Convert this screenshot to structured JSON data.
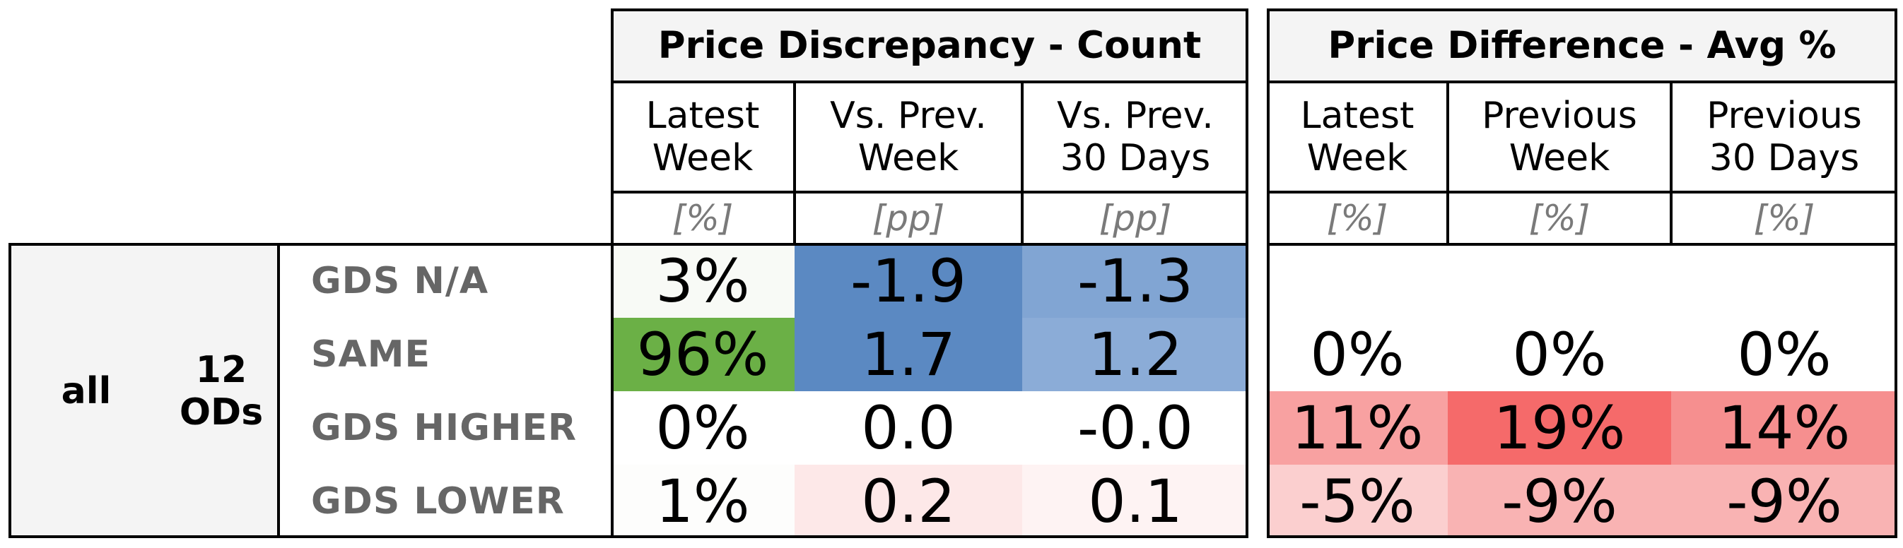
{
  "chart_data": {
    "type": "table",
    "panels": [
      {
        "title": "Price Discrepancy - Count",
        "columns": [
          {
            "label": "Latest\nWeek",
            "unit": "[%]"
          },
          {
            "label": "Vs. Prev.\nWeek",
            "unit": "[pp]"
          },
          {
            "label": "Vs. Prev.\n30 Days",
            "unit": "[pp]"
          }
        ],
        "rows": [
          [
            "3%",
            "-1.9",
            "-1.3"
          ],
          [
            "96%",
            "1.7",
            "1.2"
          ],
          [
            "0%",
            "0.0",
            "-0.0"
          ],
          [
            "1%",
            "0.2",
            "0.1"
          ]
        ],
        "colors": [
          [
            "#f8faf6",
            "#5b89c2",
            "#81a5d3"
          ],
          [
            "#6bb046",
            "#5b89c2",
            "#8bacd7"
          ],
          [
            "#ffffff",
            "#ffffff",
            "#ffffff"
          ],
          [
            "#fdfdfc",
            "#fde8e8",
            "#fef3f3"
          ]
        ]
      },
      {
        "title": "Price Difference - Avg %",
        "columns": [
          {
            "label": "Latest\nWeek",
            "unit": "[%]"
          },
          {
            "label": "Previous\nWeek",
            "unit": "[%]"
          },
          {
            "label": "Previous\n30 Days",
            "unit": "[%]"
          }
        ],
        "rows": [
          [
            "",
            "",
            ""
          ],
          [
            "0%",
            "0%",
            "0%"
          ],
          [
            "11%",
            "19%",
            "14%"
          ],
          [
            "-5%",
            "-9%",
            "-9%"
          ]
        ],
        "colors": [
          [
            "#ffffff",
            "#ffffff",
            "#ffffff"
          ],
          [
            "#ffffff",
            "#ffffff",
            "#ffffff"
          ],
          [
            "#f8a1a1",
            "#f56a6a",
            "#f68f8f"
          ],
          [
            "#fbcfcf",
            "#f9b3b3",
            "#f9b3b3"
          ]
        ]
      }
    ],
    "row_groups": {
      "group": "all",
      "subgroup": "12\nODs"
    },
    "row_labels": [
      "GDS N/A",
      "SAME",
      "GDS HIGHER",
      "GDS LOWER"
    ]
  }
}
